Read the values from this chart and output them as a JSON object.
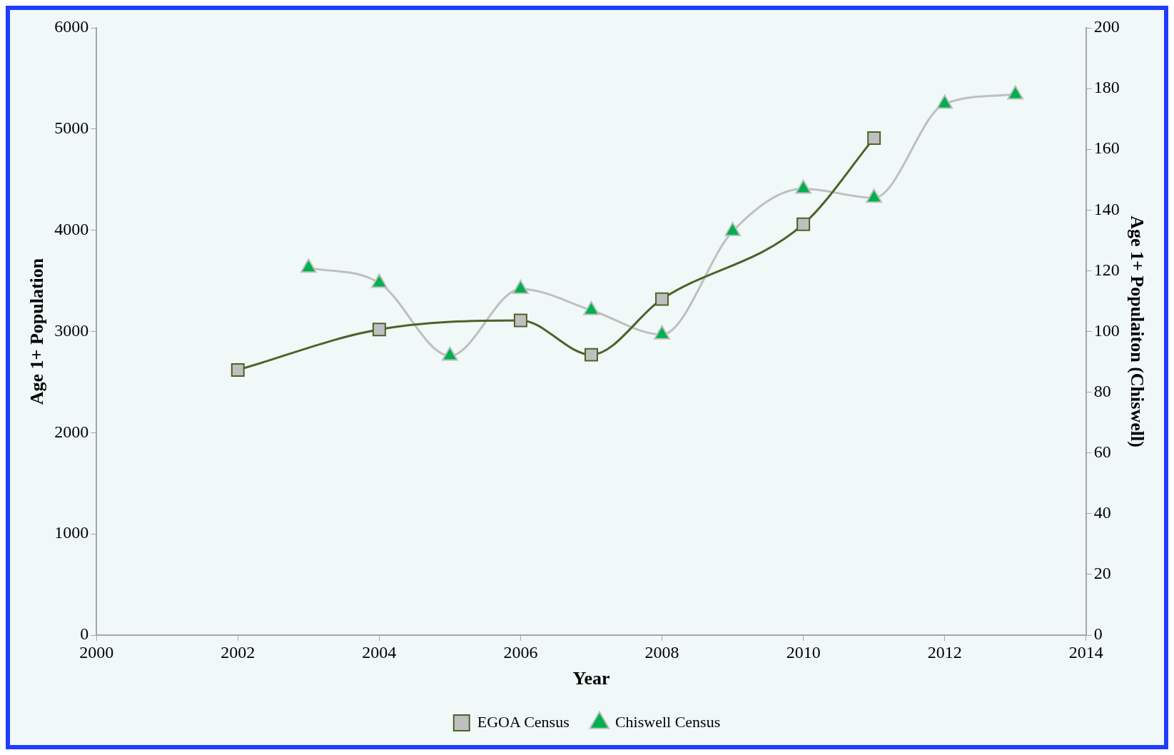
{
  "chart_data": {
    "type": "line",
    "xlabel": "Year",
    "ylabel": "Age 1+ Population",
    "y2label": "Age 1+ Populaiton (Chiswell)",
    "xlim": [
      2000,
      2014
    ],
    "xticks": [
      2000,
      2002,
      2004,
      2006,
      2008,
      2010,
      2012,
      2014
    ],
    "ylim": [
      0,
      6000
    ],
    "yticks": [
      0,
      1000,
      2000,
      3000,
      4000,
      5000,
      6000
    ],
    "y2lim": [
      0,
      200
    ],
    "y2ticks": [
      0,
      20,
      40,
      60,
      80,
      100,
      120,
      140,
      160,
      180,
      200
    ],
    "grid": false,
    "legend": "bottom",
    "series": [
      {
        "name": "EGOA Census",
        "color": "#4f6228",
        "marker": "square",
        "x": [
          2002,
          2004,
          2006,
          2007,
          2008,
          2010,
          2011
        ],
        "values": [
          2620,
          3020,
          3110,
          2770,
          3320,
          4060,
          4910
        ]
      },
      {
        "name": "Chiswell Census",
        "color": "#bfbfbf",
        "marker": "triangle",
        "axis": "y2",
        "x": [
          2003,
          2004,
          2005,
          2006,
          2007,
          2008,
          2009,
          2010,
          2011,
          2012,
          2013
        ],
        "values": [
          121,
          116,
          92,
          114,
          107,
          99,
          133,
          147,
          144,
          175,
          178
        ]
      }
    ]
  }
}
